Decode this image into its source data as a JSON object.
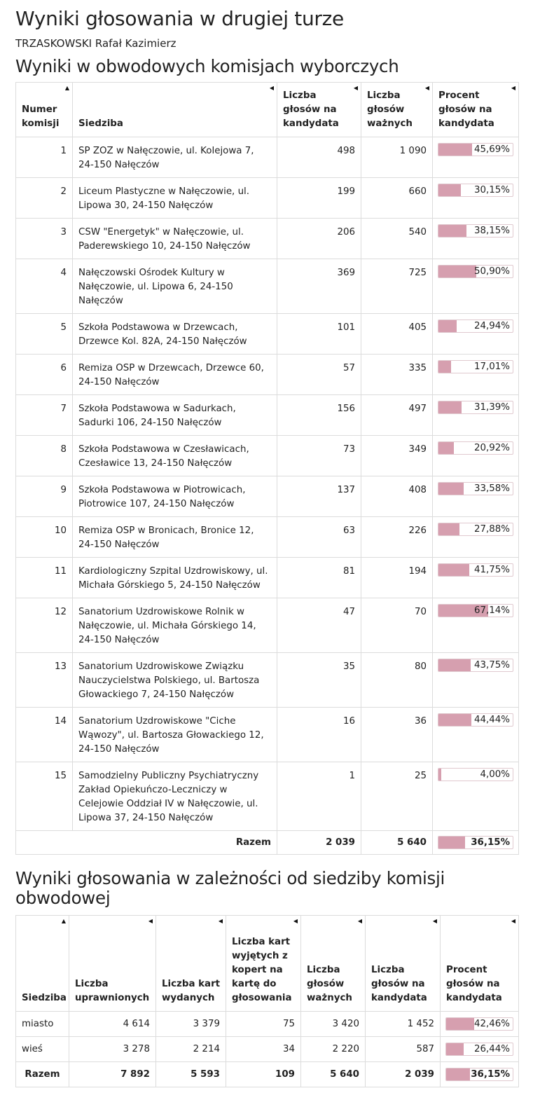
{
  "page": {
    "title": "Wyniki głosowania w drugiej turze",
    "candidate": "TRZASKOWSKI Rafał Kazimierz",
    "colors": {
      "bar_fill": "#d69faf",
      "bar_border": "#e0c9cf",
      "grid": "#dcdcdc"
    }
  },
  "table1": {
    "heading": "Wyniki w obwodowych komisjach wyborczych",
    "columns": [
      "Numer komisji",
      "Siedziba",
      "Liczba głosów na kandydata",
      "Liczba głosów ważnych",
      "Procent głosów na kandydata"
    ],
    "sort_icons": [
      "triangle-up-icon",
      "triangle-left-icon"
    ],
    "rows": [
      {
        "nr": "1",
        "siedziba": "SP ZOZ w Nałęczowie, ul. Kolejowa 7, 24-150 Nałęczów",
        "glosy": "498",
        "wazne": "1 090",
        "pct": "45,69%",
        "pct_value": 45.69
      },
      {
        "nr": "2",
        "siedziba": "Liceum Plastyczne w Nałęczowie, ul. Lipowa 30, 24-150 Nałęczów",
        "glosy": "199",
        "wazne": "660",
        "pct": "30,15%",
        "pct_value": 30.15
      },
      {
        "nr": "3",
        "siedziba": "CSW \"Energetyk\" w Nałęczowie, ul. Paderewskiego 10, 24-150 Nałęczów",
        "glosy": "206",
        "wazne": "540",
        "pct": "38,15%",
        "pct_value": 38.15
      },
      {
        "nr": "4",
        "siedziba": "Nałęczowski Ośrodek Kultury w Nałęczowie, ul. Lipowa 6, 24-150 Nałęczów",
        "glosy": "369",
        "wazne": "725",
        "pct": "50,90%",
        "pct_value": 50.9
      },
      {
        "nr": "5",
        "siedziba": "Szkoła Podstawowa w Drzewcach, Drzewce Kol. 82A, 24-150 Nałęczów",
        "glosy": "101",
        "wazne": "405",
        "pct": "24,94%",
        "pct_value": 24.94
      },
      {
        "nr": "6",
        "siedziba": "Remiza OSP w Drzewcach, Drzewce 60, 24-150 Nałęczów",
        "glosy": "57",
        "wazne": "335",
        "pct": "17,01%",
        "pct_value": 17.01
      },
      {
        "nr": "7",
        "siedziba": "Szkoła Podstawowa w Sadurkach, Sadurki 106, 24-150 Nałęczów",
        "glosy": "156",
        "wazne": "497",
        "pct": "31,39%",
        "pct_value": 31.39
      },
      {
        "nr": "8",
        "siedziba": "Szkoła Podstawowa w Czesławicach, Czesławice 13, 24-150 Nałęczów",
        "glosy": "73",
        "wazne": "349",
        "pct": "20,92%",
        "pct_value": 20.92
      },
      {
        "nr": "9",
        "siedziba": "Szkoła Podstawowa w Piotrowicach, Piotrowice 107, 24-150 Nałęczów",
        "glosy": "137",
        "wazne": "408",
        "pct": "33,58%",
        "pct_value": 33.58
      },
      {
        "nr": "10",
        "siedziba": "Remiza OSP w Bronicach, Bronice 12, 24-150 Nałęczów",
        "glosy": "63",
        "wazne": "226",
        "pct": "27,88%",
        "pct_value": 27.88
      },
      {
        "nr": "11",
        "siedziba": "Kardiologiczny Szpital Uzdrowiskowy, ul. Michała Górskiego 5, 24-150 Nałęczów",
        "glosy": "81",
        "wazne": "194",
        "pct": "41,75%",
        "pct_value": 41.75
      },
      {
        "nr": "12",
        "siedziba": "Sanatorium Uzdrowiskowe Rolnik w Nałęczowie, ul. Michała Górskiego 14, 24-150 Nałęczów",
        "glosy": "47",
        "wazne": "70",
        "pct": "67,14%",
        "pct_value": 67.14
      },
      {
        "nr": "13",
        "siedziba": "Sanatorium Uzdrowiskowe Związku Nauczycielstwa Polskiego, ul. Bartosza Głowackiego 7, 24-150 Nałęczów",
        "glosy": "35",
        "wazne": "80",
        "pct": "43,75%",
        "pct_value": 43.75
      },
      {
        "nr": "14",
        "siedziba": "Sanatorium Uzdrowiskowe \"Ciche Wąwozy\", ul. Bartosza Głowackiego 12, 24-150 Nałęczów",
        "glosy": "16",
        "wazne": "36",
        "pct": "44,44%",
        "pct_value": 44.44
      },
      {
        "nr": "15",
        "siedziba": "Samodzielny Publiczny Psychiatryczny Zakład Opiekuńczo-Leczniczy w Celejowie Oddział IV w Nałęczowie, ul. Lipowa 37, 24-150 Nałęczów",
        "glosy": "1",
        "wazne": "25",
        "pct": "4,00%",
        "pct_value": 4.0
      }
    ],
    "total": {
      "label": "Razem",
      "glosy": "2 039",
      "wazne": "5 640",
      "pct": "36,15%",
      "pct_value": 36.15
    }
  },
  "table2": {
    "heading": "Wyniki głosowania w zależności od siedziby komisji obwodowej",
    "columns": [
      "Siedziba",
      "Liczba uprawnionych",
      "Liczba kart wydanych",
      "Liczba kart wyjętych z kopert na kartę do głosowania",
      "Liczba głosów ważnych",
      "Liczba głosów na kandydata",
      "Procent głosów na kandydata"
    ],
    "rows": [
      {
        "siedziba": "miasto",
        "uprawnieni": "4 614",
        "wydane": "3 379",
        "koperty": "75",
        "wazne": "3 420",
        "glosy": "1 452",
        "pct": "42,46%",
        "pct_value": 42.46
      },
      {
        "siedziba": "wieś",
        "uprawnieni": "3 278",
        "wydane": "2 214",
        "koperty": "34",
        "wazne": "2 220",
        "glosy": "587",
        "pct": "26,44%",
        "pct_value": 26.44
      }
    ],
    "total": {
      "label": "Razem",
      "uprawnieni": "7 892",
      "wydane": "5 593",
      "koperty": "109",
      "wazne": "5 640",
      "glosy": "2 039",
      "pct": "36,15%",
      "pct_value": 36.15
    }
  }
}
